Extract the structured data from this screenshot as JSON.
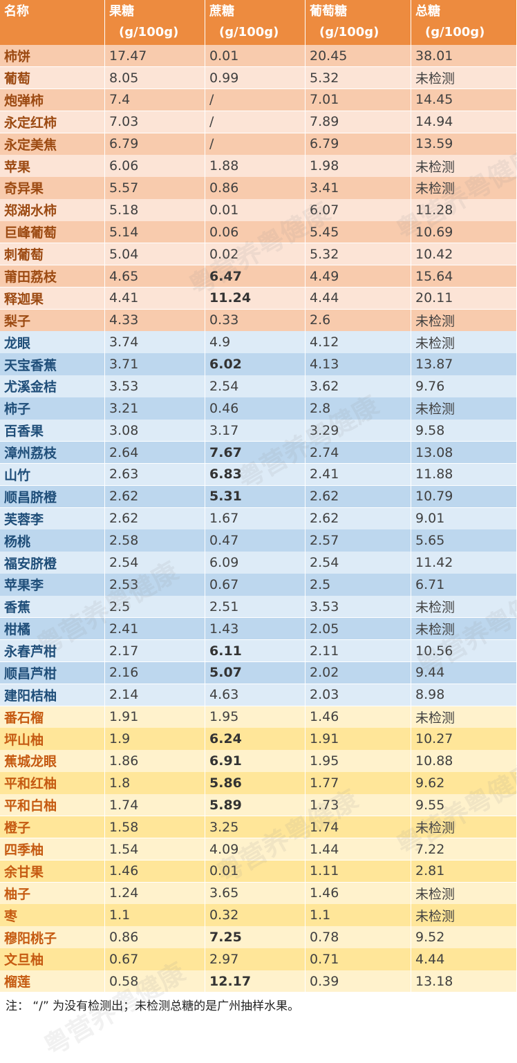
{
  "header": {
    "columns": [
      {
        "name": "名称"
      },
      {
        "name": "果糖",
        "unit": "(g/100g)"
      },
      {
        "name": "蔗糖",
        "unit": "(g/100g)"
      },
      {
        "name": "葡萄糖",
        "unit": "(g/100g)"
      },
      {
        "name": "总糖",
        "unit": "(g/100g)"
      }
    ],
    "color": "#ED8B3F"
  },
  "groups": [
    {
      "name_color": "#9C4A12",
      "row_colors": [
        "#F8CBAD",
        "#FCE4D6"
      ],
      "rows": [
        {
          "cells": [
            "柿饼",
            "17.47",
            "0.01",
            "20.45",
            "38.01"
          ]
        },
        {
          "cells": [
            "葡萄",
            "8.05",
            "0.99",
            "5.32",
            "未检测"
          ]
        },
        {
          "cells": [
            "炮弹柿",
            "7.4",
            "/",
            "7.01",
            "14.45"
          ]
        },
        {
          "cells": [
            "永定红柿",
            "7.03",
            "/",
            "7.89",
            "14.94"
          ]
        },
        {
          "cells": [
            "永定美焦",
            "6.79",
            "/",
            "6.79",
            "13.59"
          ]
        },
        {
          "cells": [
            "苹果",
            "6.06",
            "1.88",
            "1.98",
            "未检测"
          ]
        },
        {
          "cells": [
            "奇异果",
            "5.57",
            "0.86",
            "3.41",
            "未检测"
          ]
        },
        {
          "cells": [
            "郑湖水柿",
            "5.18",
            "0.01",
            "6.07",
            "11.28"
          ]
        },
        {
          "cells": [
            "巨峰葡萄",
            "5.14",
            "0.06",
            "5.45",
            "10.69"
          ]
        },
        {
          "cells": [
            "刺葡萄",
            "5.04",
            "0.02",
            "5.32",
            "10.42"
          ]
        },
        {
          "cells": [
            "莆田荔枝",
            "4.65",
            "6.47",
            "4.49",
            "15.64"
          ],
          "bold": [
            2
          ]
        },
        {
          "cells": [
            "释迦果",
            "4.41",
            "11.24",
            "4.44",
            "20.11"
          ],
          "bold": [
            2
          ]
        },
        {
          "cells": [
            "梨子",
            "4.33",
            "0.33",
            "2.6",
            "未检测"
          ]
        }
      ]
    },
    {
      "name_color": "#1F4E79",
      "row_colors": [
        "#DDEBF7",
        "#BDD7EE"
      ],
      "rows": [
        {
          "cells": [
            "龙眼",
            "3.74",
            "4.9",
            "4.12",
            "未检测"
          ]
        },
        {
          "cells": [
            "天宝香蕉",
            "3.71",
            "6.02",
            "4.13",
            "13.87"
          ],
          "bold": [
            2
          ]
        },
        {
          "cells": [
            "尤溪金桔",
            "3.53",
            "2.54",
            "3.62",
            "9.76"
          ]
        },
        {
          "cells": [
            "柿子",
            "3.21",
            "0.46",
            "2.8",
            "未检测"
          ]
        },
        {
          "cells": [
            "百香果",
            "3.08",
            "3.17",
            "3.29",
            "9.58"
          ]
        },
        {
          "cells": [
            "漳州荔枝",
            "2.64",
            "7.67",
            "2.74",
            "13.08"
          ],
          "bold": [
            2
          ]
        },
        {
          "cells": [
            "山竹",
            "2.63",
            "6.83",
            "2.41",
            "11.88"
          ],
          "bold": [
            2
          ]
        },
        {
          "cells": [
            "顺昌脐橙",
            "2.62",
            "5.31",
            "2.62",
            "10.79"
          ],
          "bold": [
            2
          ]
        },
        {
          "cells": [
            "芙蓉李",
            "2.62",
            "1.67",
            "2.62",
            "9.01"
          ]
        },
        {
          "cells": [
            "杨桃",
            "2.58",
            "0.47",
            "2.57",
            "5.65"
          ]
        },
        {
          "cells": [
            "福安脐橙",
            "2.54",
            "6.09",
            "2.54",
            "11.42"
          ]
        },
        {
          "cells": [
            "苹果李",
            "2.53",
            "0.67",
            "2.5",
            "6.71"
          ]
        },
        {
          "cells": [
            "香蕉",
            "2.5",
            "2.51",
            "3.53",
            "未检测"
          ]
        },
        {
          "cells": [
            "柑橘",
            "2.41",
            "1.43",
            "2.05",
            "未检测"
          ]
        },
        {
          "cells": [
            "永春芦柑",
            "2.17",
            "6.11",
            "2.11",
            "10.56"
          ],
          "bold": [
            2
          ]
        },
        {
          "cells": [
            "顺昌芦柑",
            "2.16",
            "5.07",
            "2.02",
            "9.44"
          ],
          "bold": [
            2
          ]
        },
        {
          "cells": [
            "建阳桔柚",
            "2.14",
            "4.63",
            "2.03",
            "8.98"
          ]
        }
      ]
    },
    {
      "name_color": "#C55A11",
      "row_colors": [
        "#FFF2CC",
        "#FFE699"
      ],
      "rows": [
        {
          "cells": [
            "番石榴",
            "1.91",
            "1.95",
            "1.46",
            "未检测"
          ]
        },
        {
          "cells": [
            "坪山柚",
            "1.9",
            "6.24",
            "1.91",
            "10.27"
          ],
          "bold": [
            2
          ]
        },
        {
          "cells": [
            "蕉城龙眼",
            "1.86",
            "6.91",
            "1.95",
            "10.88"
          ],
          "bold": [
            2
          ]
        },
        {
          "cells": [
            "平和红柚",
            "1.8",
            "5.86",
            "1.77",
            "9.62"
          ],
          "bold": [
            2
          ]
        },
        {
          "cells": [
            "平和白柚",
            "1.74",
            "5.89",
            "1.73",
            "9.55"
          ],
          "bold": [
            2
          ]
        },
        {
          "cells": [
            "橙子",
            "1.58",
            "3.25",
            "1.74",
            "未检测"
          ]
        },
        {
          "cells": [
            "四季柚",
            "1.54",
            "4.09",
            "1.44",
            "7.22"
          ]
        },
        {
          "cells": [
            "余甘果",
            "1.46",
            "0.01",
            "1.11",
            "2.81"
          ]
        },
        {
          "cells": [
            "柚子",
            "1.24",
            "3.65",
            "1.46",
            "未检测"
          ]
        },
        {
          "cells": [
            "枣",
            "1.1",
            "0.32",
            "1.1",
            "未检测"
          ]
        },
        {
          "cells": [
            "穆阳桃子",
            "0.86",
            "7.25",
            "0.78",
            "9.52"
          ],
          "bold": [
            2
          ]
        },
        {
          "cells": [
            "文旦柚",
            "0.67",
            "2.97",
            "0.71",
            "4.44"
          ]
        },
        {
          "cells": [
            "榴莲",
            "0.58",
            "12.17",
            "0.39",
            "13.18"
          ],
          "bold": [
            2
          ]
        }
      ]
    }
  ],
  "footer": "注：  “/”  为没有检测出；未检测总糖的是广州抽样水果。",
  "watermark": "粤营养粤健康"
}
